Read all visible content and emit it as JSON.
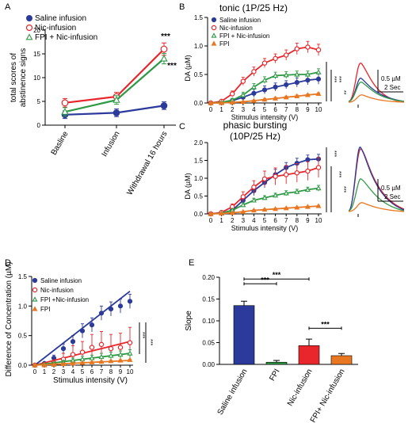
{
  "colors": {
    "saline": "#2b3a9b",
    "nic": "#e8262b",
    "fpi_nic": "#2e9a45",
    "fpi": "#e87722"
  },
  "chart_data": [
    {
      "panel": "A",
      "type": "line",
      "title": "",
      "xlabel": "",
      "ylabel": "total scores of\nabstinence signs",
      "categories": [
        "Basline",
        "Infusion",
        "Withdrawal  16 hours"
      ],
      "ylim": [
        0,
        20
      ],
      "yticks": [
        0,
        5,
        10,
        15,
        20
      ],
      "legend_position": "top-left",
      "series": [
        {
          "name": "Saline infusion",
          "color": "#2b3a9b",
          "marker": "filled-circle",
          "values": [
            2.2,
            2.6,
            4.1
          ],
          "err": [
            0.8,
            0.8,
            0.8
          ]
        },
        {
          "name": "Nic-infusion",
          "color": "#e8262b",
          "marker": "open-circle",
          "values": [
            4.7,
            6.0,
            16.0
          ],
          "err": [
            0.9,
            0.9,
            1.3
          ]
        },
        {
          "name": "FPI + Nic-infusion",
          "color": "#2e9a45",
          "marker": "open-triangle",
          "values": [
            2.8,
            5.3,
            14.0
          ],
          "err": [
            0.9,
            0.9,
            1.1
          ]
        }
      ],
      "annotations": [
        {
          "text": "***",
          "series": "Nic-infusion"
        },
        {
          "text": "***",
          "series": "FPI + Nic-infusion"
        }
      ]
    },
    {
      "panel": "B",
      "type": "line",
      "title": "tonic (1P/25 Hz)",
      "xlabel": "Stimulus intensity (V)",
      "ylabel": "DA (uM)",
      "x": [
        0,
        1,
        2,
        3,
        4,
        5,
        6,
        7,
        8,
        9,
        10
      ],
      "xlim": [
        0,
        10
      ],
      "ylim": [
        0,
        1.5
      ],
      "yticks": [
        0.0,
        0.5,
        1.0,
        1.5
      ],
      "legend_position": "top-left",
      "series": [
        {
          "name": "Saline infusion",
          "color": "#2b3a9b",
          "marker": "filled-circle",
          "values": [
            0,
            0.01,
            0.04,
            0.1,
            0.17,
            0.23,
            0.28,
            0.32,
            0.36,
            0.4,
            0.42
          ],
          "err": [
            0,
            0.01,
            0.03,
            0.06,
            0.07,
            0.07,
            0.07,
            0.07,
            0.08,
            0.08,
            0.09
          ]
        },
        {
          "name": "Nic-infusion",
          "color": "#e8262b",
          "marker": "open-circle",
          "values": [
            0,
            0.03,
            0.16,
            0.38,
            0.55,
            0.7,
            0.78,
            0.84,
            0.95,
            0.98,
            0.93
          ],
          "err": [
            0,
            0.02,
            0.05,
            0.07,
            0.08,
            0.08,
            0.08,
            0.09,
            0.1,
            0.1,
            0.1
          ]
        },
        {
          "name": "FPI + Nic-infusion",
          "color": "#2e9a45",
          "marker": "open-triangle",
          "values": [
            0,
            0.01,
            0.05,
            0.14,
            0.28,
            0.4,
            0.48,
            0.49,
            0.5,
            0.5,
            0.54
          ],
          "err": [
            0,
            0.01,
            0.03,
            0.05,
            0.06,
            0.06,
            0.06,
            0.06,
            0.06,
            0.06,
            0.06
          ]
        },
        {
          "name": "FPI",
          "color": "#e87722",
          "marker": "filled-triangle",
          "values": [
            0,
            0.0,
            0.01,
            0.02,
            0.04,
            0.06,
            0.08,
            0.1,
            0.12,
            0.14,
            0.16
          ],
          "err": [
            0,
            0,
            0.01,
            0.01,
            0.01,
            0.02,
            0.02,
            0.02,
            0.02,
            0.02,
            0.02
          ]
        }
      ],
      "significance": [
        "***",
        "***",
        "**"
      ],
      "scale_bar": {
        "amplitude_label": "0.5 µM",
        "time_label": "2 Sec"
      }
    },
    {
      "panel": "C",
      "type": "line",
      "title": "phasic bursting\n(10P/25 Hz)",
      "xlabel": "Stimulus intensity (V)",
      "ylabel": "DA (uM)",
      "x": [
        0,
        1,
        2,
        3,
        4,
        5,
        6,
        7,
        8,
        9,
        10
      ],
      "xlim": [
        0,
        10
      ],
      "ylim": [
        0,
        2.0
      ],
      "yticks": [
        0.0,
        0.5,
        1.0,
        1.5,
        2.0
      ],
      "series": [
        {
          "name": "Saline infusion",
          "color": "#2b3a9b",
          "marker": "filled-circle",
          "values": [
            0,
            0.02,
            0.1,
            0.38,
            0.65,
            0.88,
            1.1,
            1.3,
            1.42,
            1.52,
            1.54
          ],
          "err": [
            0,
            0.02,
            0.05,
            0.1,
            0.14,
            0.15,
            0.15,
            0.14,
            0.14,
            0.13,
            0.13
          ]
        },
        {
          "name": "Nic-infusion",
          "color": "#e8262b",
          "marker": "open-circle",
          "values": [
            0,
            0.04,
            0.2,
            0.48,
            0.75,
            0.98,
            1.05,
            1.1,
            1.15,
            1.2,
            1.3
          ],
          "err": [
            0,
            0.03,
            0.08,
            0.14,
            0.18,
            0.22,
            0.24,
            0.26,
            0.26,
            0.26,
            0.28
          ]
        },
        {
          "name": "FPI + Nic-infusion",
          "color": "#2e9a45",
          "marker": "open-triangle",
          "values": [
            0,
            0.02,
            0.1,
            0.25,
            0.38,
            0.45,
            0.52,
            0.58,
            0.62,
            0.68,
            0.72
          ],
          "err": [
            0,
            0.01,
            0.04,
            0.06,
            0.06,
            0.06,
            0.06,
            0.07,
            0.07,
            0.07,
            0.08
          ]
        },
        {
          "name": "FPI",
          "color": "#e87722",
          "marker": "filled-triangle",
          "values": [
            0,
            0.01,
            0.03,
            0.06,
            0.1,
            0.12,
            0.14,
            0.16,
            0.18,
            0.2,
            0.22
          ],
          "err": [
            0,
            0.01,
            0.01,
            0.02,
            0.02,
            0.02,
            0.02,
            0.02,
            0.02,
            0.02,
            0.02
          ]
        }
      ],
      "significance": [
        "***",
        "***",
        "***"
      ],
      "scale_bar": {
        "amplitude_label": "0.5 µM",
        "time_label": "2 Sec"
      }
    },
    {
      "panel": "D",
      "type": "line",
      "title": "",
      "xlabel": "Stimulus intensity (V)",
      "ylabel": "Difference of Concentration (µM)",
      "x": [
        0,
        1,
        2,
        3,
        4,
        5,
        6,
        7,
        8,
        9,
        10
      ],
      "xlim": [
        0,
        10
      ],
      "ylim": [
        0,
        1.5
      ],
      "yticks": [
        0.0,
        0.5,
        1.0,
        1.5
      ],
      "legend_position": "top-left",
      "series": [
        {
          "name": "Saline infusion",
          "color": "#2b3a9b",
          "marker": "filled-circle",
          "values": [
            0,
            0.03,
            0.12,
            0.28,
            0.4,
            0.58,
            0.68,
            0.88,
            0.95,
            1.0,
            1.08
          ],
          "err": [
            0,
            0.02,
            0.05,
            0.08,
            0.1,
            0.12,
            0.12,
            0.12,
            0.12,
            0.12,
            0.12
          ]
        },
        {
          "name": "Nic-infusion",
          "color": "#e8262b",
          "marker": "open-circle",
          "values": [
            0,
            0.01,
            0.04,
            0.1,
            0.18,
            0.22,
            0.3,
            0.35,
            0.28,
            0.3,
            0.38
          ],
          "err": [
            0,
            0.02,
            0.05,
            0.1,
            0.15,
            0.18,
            0.22,
            0.22,
            0.24,
            0.24,
            0.26
          ]
        },
        {
          "name": "FPI +Nic-infusion",
          "color": "#2e9a45",
          "marker": "open-triangle",
          "values": [
            0,
            0.01,
            0.03,
            0.05,
            0.08,
            0.1,
            0.12,
            0.14,
            0.16,
            0.18,
            0.2
          ],
          "err": [
            0,
            0.01,
            0.02,
            0.03,
            0.04,
            0.05,
            0.05,
            0.06,
            0.06,
            0.06,
            0.06
          ]
        },
        {
          "name": "FPI",
          "color": "#e87722",
          "marker": "filled-triangle",
          "values": [
            0,
            0.0,
            0.01,
            0.02,
            0.03,
            0.04,
            0.05,
            0.06,
            0.07,
            0.08,
            0.09
          ],
          "err": [
            0,
            0,
            0.01,
            0.01,
            0.01,
            0.01,
            0.01,
            0.01,
            0.01,
            0.01,
            0.01
          ]
        }
      ],
      "fit_slopes": {
        "Saline infusion": 0.125,
        "Nic-infusion": 0.04,
        "FPI +Nic-infusion": 0.02,
        "FPI": 0.008
      },
      "significance": [
        "***",
        "***"
      ]
    },
    {
      "panel": "E",
      "type": "bar",
      "title": "",
      "xlabel": "",
      "ylabel": "Slope",
      "categories": [
        "Saline infusion",
        "FPI",
        "Nic-infusion",
        "FPI+ Nic-infusion"
      ],
      "values": [
        0.135,
        0.005,
        0.043,
        0.02
      ],
      "err": [
        0.01,
        0.004,
        0.015,
        0.005
      ],
      "bar_colors": [
        "#2b3a9b",
        "#2e9a45",
        "#e8262b",
        "#e87722"
      ],
      "ylim": [
        0,
        0.2
      ],
      "yticks": [
        "0.00",
        "0.05",
        "0.10",
        "0.15",
        "0.20"
      ],
      "comparisons": [
        {
          "from": 0,
          "to": 1,
          "text": "***"
        },
        {
          "from": 0,
          "to": 2,
          "text": "***"
        },
        {
          "from": 2,
          "to": 3,
          "text": "***"
        }
      ]
    }
  ],
  "panel_letters": [
    "A",
    "B",
    "C",
    "D",
    "E"
  ]
}
